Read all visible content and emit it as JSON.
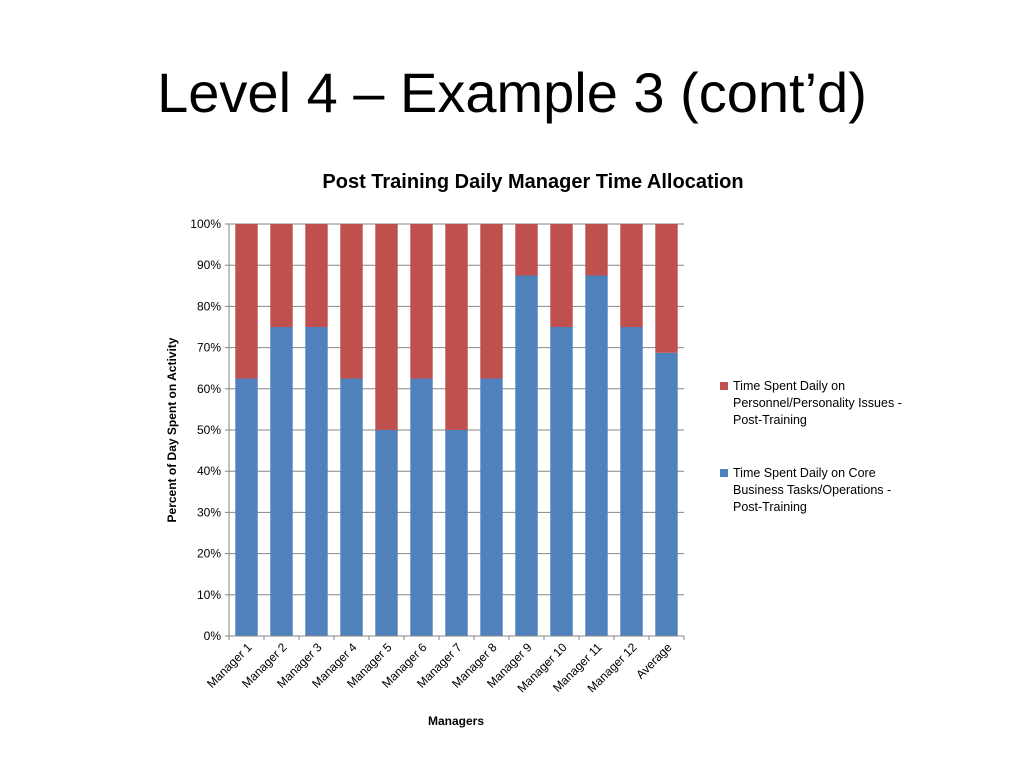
{
  "slide": {
    "title": "Level 4 – Example 3 (cont’d)"
  },
  "chart_data": {
    "type": "bar",
    "stacked": true,
    "title": "Post Training Daily Manager Time Allocation",
    "xlabel": "Managers",
    "ylabel": "Percent of Day Spent on Activity",
    "ylim": [
      0,
      100
    ],
    "y_ticks": [
      "0%",
      "10%",
      "20%",
      "30%",
      "40%",
      "50%",
      "60%",
      "70%",
      "80%",
      "90%",
      "100%"
    ],
    "categories": [
      "Manager 1",
      "Manager 2",
      "Manager 3",
      "Manager 4",
      "Manager 5",
      "Manager 6",
      "Manager 7",
      "Manager 8",
      "Manager 9",
      "Manager 10",
      "Manager 11",
      "Manager 12",
      "Average"
    ],
    "grid": true,
    "legend_position": "right",
    "series": [
      {
        "name": "Time Spent Daily on Core Business Tasks/Operations - Post-Training",
        "color": "#4F81BD",
        "values": [
          62.5,
          75,
          75,
          62.5,
          50,
          62.5,
          50,
          62.5,
          87.5,
          75,
          87.5,
          75,
          68.75
        ]
      },
      {
        "name": "Time Spent Daily on Personnel/Personality Issues - Post-Training",
        "color": "#C0504D",
        "values": [
          37.5,
          25,
          25,
          37.5,
          50,
          37.5,
          50,
          37.5,
          12.5,
          25,
          12.5,
          25,
          31.25
        ]
      }
    ]
  }
}
